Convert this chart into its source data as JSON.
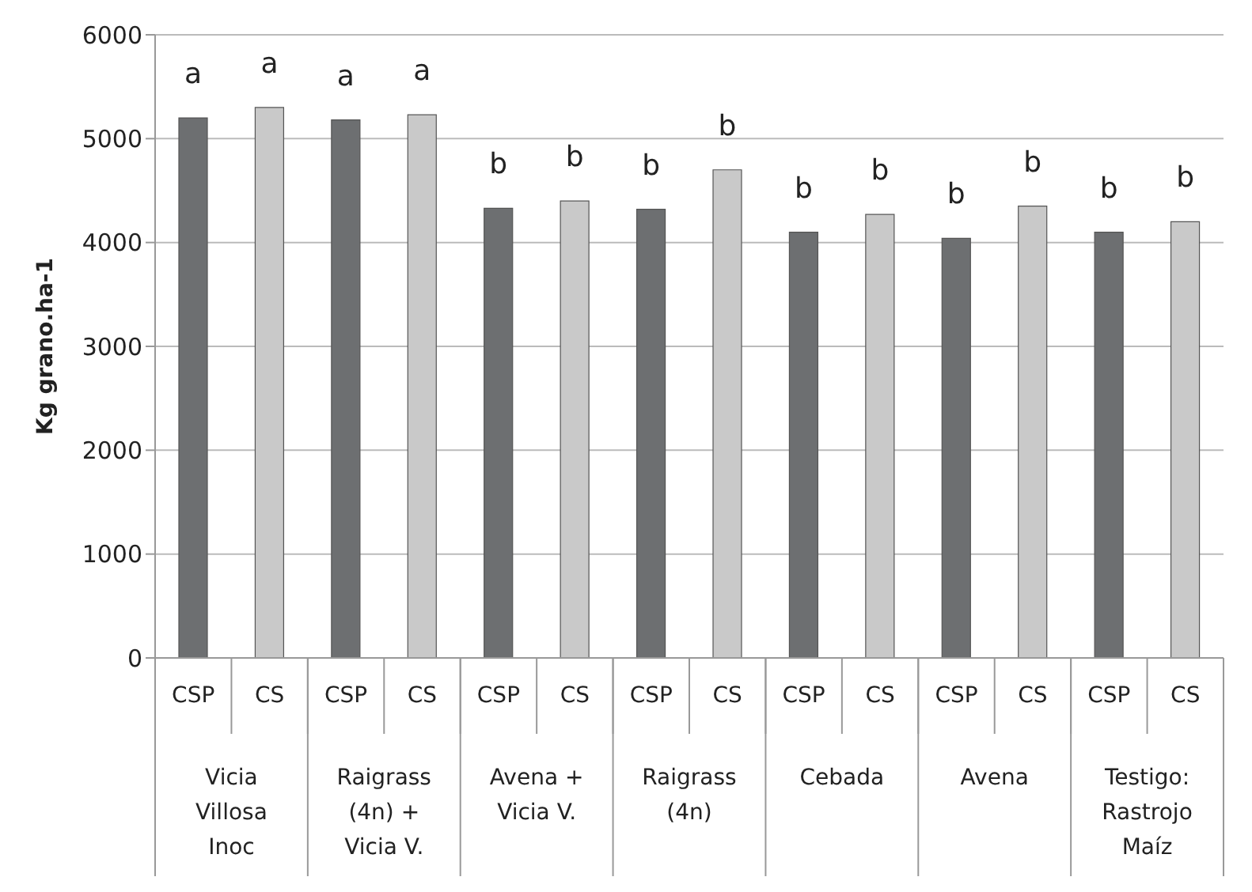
{
  "chart_data": {
    "type": "bar",
    "ylabel": "Kg grano.ha-1",
    "categories": [
      "CSP",
      "CS",
      "CSP",
      "CS",
      "CSP",
      "CS",
      "CSP",
      "CS",
      "CSP",
      "CS",
      "CSP",
      "CS",
      "CSP",
      "CS"
    ],
    "values": [
      5200,
      5300,
      5180,
      5230,
      4330,
      4400,
      4320,
      4700,
      4100,
      4270,
      4040,
      4350,
      4100,
      4200
    ],
    "colors": [
      "#6d6f71",
      "#c9c9c9",
      "#6d6f71",
      "#c9c9c9",
      "#6d6f71",
      "#c9c9c9",
      "#6d6f71",
      "#c9c9c9",
      "#6d6f71",
      "#c9c9c9",
      "#6d6f71",
      "#c9c9c9",
      "#6d6f71",
      "#c9c9c9"
    ],
    "ylim": [
      0,
      6000
    ],
    "yticks": [
      0,
      1000,
      2000,
      3000,
      4000,
      5000,
      6000
    ],
    "grid": "y",
    "legend": false,
    "annotations": [
      "a",
      "a",
      "a",
      "a",
      "b",
      "b",
      "b",
      "b",
      "b",
      "b",
      "b",
      "b",
      "b",
      "b",
      "Vicia Villosa Inoc",
      "Raigrass (4n) + Vicia V.",
      "Avena + Vicia V.",
      "Raigrass (4n)",
      "Cebada",
      "Avena",
      "Testigo: Rastrojo Maíz"
    ]
  }
}
